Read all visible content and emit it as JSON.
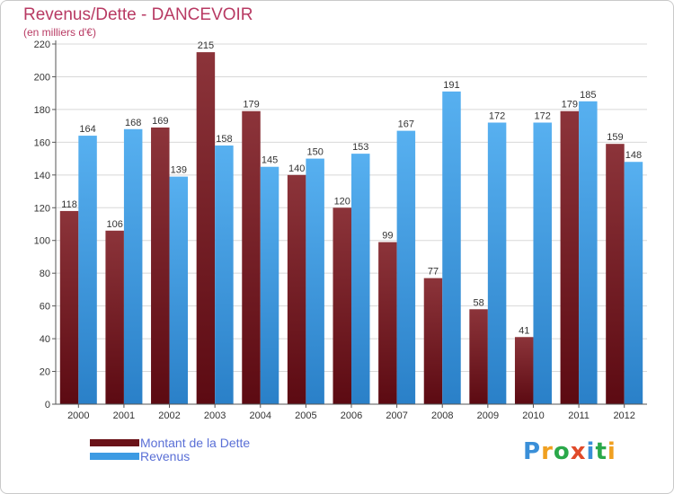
{
  "title": "Revenus/Dette - DANCEVOIR",
  "subtitle": "(en milliers d'€)",
  "logo": {
    "letters": [
      "P",
      "r",
      "o",
      "x",
      "i",
      "t",
      "i"
    ],
    "colors": [
      "#3a8fd8",
      "#f0a020",
      "#2aa84a",
      "#e04a2a",
      "#3a8fd8",
      "#2aa84a",
      "#f0a020"
    ]
  },
  "colors": {
    "dette": "#7a2026",
    "revenus": "#3d9be3"
  },
  "chart_data": {
    "type": "bar",
    "title": "Revenus/Dette - DANCEVOIR",
    "ylabel": "(en milliers d'€)",
    "categories": [
      "2000",
      "2001",
      "2002",
      "2003",
      "2004",
      "2005",
      "2006",
      "2007",
      "2008",
      "2009",
      "2010",
      "2011",
      "2012"
    ],
    "series": [
      {
        "name": "Montant de la Dette",
        "values": [
          118,
          106,
          169,
          215,
          179,
          140,
          120,
          99,
          77,
          58,
          41,
          179,
          159
        ]
      },
      {
        "name": "Revenus",
        "values": [
          164,
          168,
          139,
          158,
          145,
          150,
          153,
          167,
          191,
          172,
          172,
          185,
          148
        ]
      }
    ],
    "ylim": [
      0,
      220
    ],
    "yticks": [
      0,
      20,
      40,
      60,
      80,
      100,
      120,
      140,
      160,
      180,
      200,
      220
    ],
    "grid": true,
    "legend_position": "bottom-left"
  }
}
